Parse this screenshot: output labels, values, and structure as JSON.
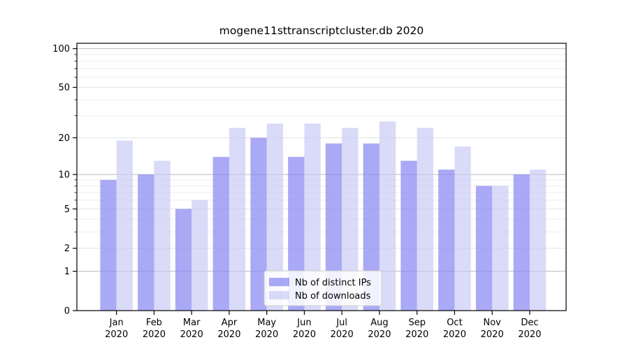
{
  "chart_data": {
    "type": "bar",
    "title": "mogene11sttranscriptcluster.db 2020",
    "categories": [
      [
        "Jan",
        "2020"
      ],
      [
        "Feb",
        "2020"
      ],
      [
        "Mar",
        "2020"
      ],
      [
        "Apr",
        "2020"
      ],
      [
        "May",
        "2020"
      ],
      [
        "Jun",
        "2020"
      ],
      [
        "Jul",
        "2020"
      ],
      [
        "Aug",
        "2020"
      ],
      [
        "Sep",
        "2020"
      ],
      [
        "Oct",
        "2020"
      ],
      [
        "Nov",
        "2020"
      ],
      [
        "Dec",
        "2020"
      ]
    ],
    "series": [
      {
        "name": "Nb of distinct IPs",
        "color": "rgba(136,136,242,0.72)",
        "values": [
          9,
          10,
          5,
          14,
          20,
          14,
          18,
          18,
          13,
          11,
          8,
          10
        ]
      },
      {
        "name": "Nb of downloads",
        "color": "rgba(198,198,246,0.65)",
        "values": [
          19,
          13,
          6,
          24,
          26,
          26,
          24,
          27,
          24,
          17,
          8,
          11
        ]
      }
    ],
    "yscale": "log1p",
    "ylim": [
      0,
      110
    ],
    "y_ticks": [
      0,
      1,
      2,
      5,
      10,
      20,
      50,
      100
    ],
    "y_decade_ticks": [
      1,
      10,
      100
    ],
    "y_minor_ticks": [
      3,
      4,
      6,
      7,
      8,
      9,
      30,
      40,
      60,
      70,
      80,
      90
    ],
    "grid": true,
    "legend_position": "bottom-center",
    "colors": {
      "grid_decade": "#bbbbbb",
      "grid_major": "#e2e2e2",
      "grid_minor": "#ededed",
      "axis": "#000000",
      "legend_border": "#cccccc",
      "legend_bg": "rgba(255,255,255,0.85)"
    }
  }
}
